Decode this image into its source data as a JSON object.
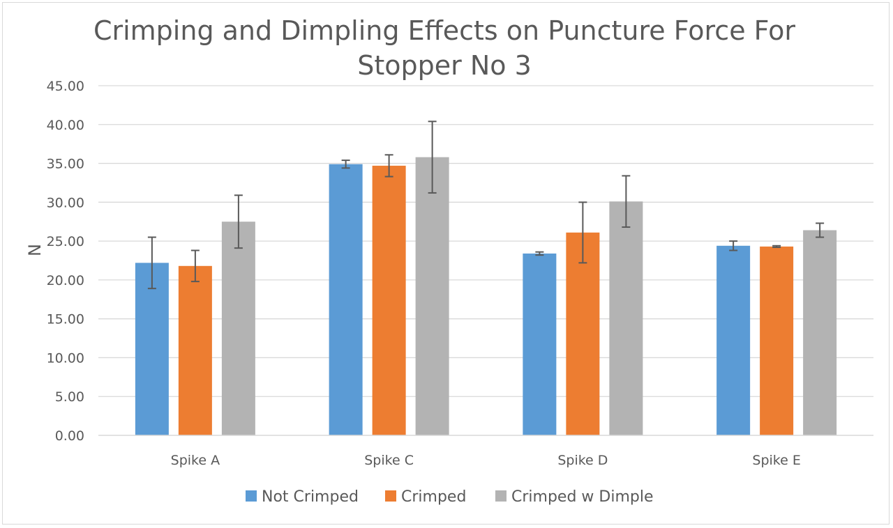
{
  "chart_data": {
    "type": "bar",
    "title_lines": [
      "Crimping and Dimpling Effects on Puncture Force For",
      "Stopper No 3"
    ],
    "xlabel": "",
    "ylabel": "N",
    "ylim": [
      0,
      45
    ],
    "ytick_step": 5,
    "ytick_labels": [
      "0.00",
      "5.00",
      "10.00",
      "15.00",
      "20.00",
      "25.00",
      "30.00",
      "35.00",
      "40.00",
      "45.00"
    ],
    "grid": true,
    "legend_position": "bottom",
    "categories": [
      "Spike A",
      "Spike C",
      "Spike D",
      "Spike E"
    ],
    "series": [
      {
        "name": "Not Crimped",
        "color": "#5b9bd5",
        "values": [
          22.2,
          34.9,
          23.4,
          24.4
        ],
        "error": [
          3.3,
          0.5,
          0.2,
          0.6
        ]
      },
      {
        "name": "Crimped",
        "color": "#ed7d31",
        "values": [
          21.8,
          34.7,
          26.1,
          24.3
        ],
        "error": [
          2.0,
          1.4,
          3.9,
          0.1
        ]
      },
      {
        "name": "Crimped w Dimple",
        "color": "#b3b3b3",
        "values": [
          27.5,
          35.8,
          30.1,
          26.4
        ],
        "error": [
          3.4,
          4.6,
          3.3,
          0.9
        ]
      }
    ]
  }
}
